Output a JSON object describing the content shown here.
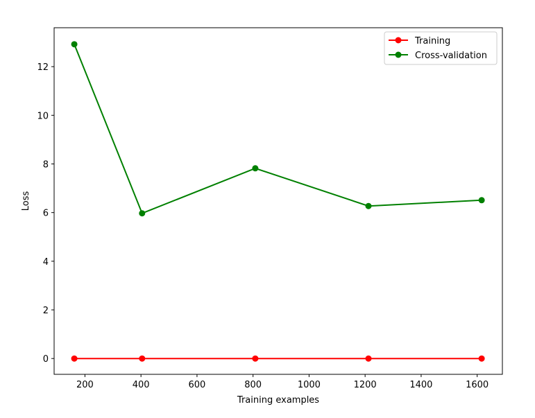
{
  "chart_data": {
    "type": "line",
    "xlabel": "Training examples",
    "ylabel": "Loss",
    "xlim": [
      90,
      1690
    ],
    "ylim": [
      -0.65,
      13.6
    ],
    "xticks": [
      200,
      400,
      600,
      800,
      1000,
      1200,
      1400,
      1600
    ],
    "yticks": [
      0,
      2,
      4,
      6,
      8,
      10,
      12
    ],
    "grid": false,
    "legend_position": "top-right",
    "series": [
      {
        "name": "Training",
        "color": "#ff0000",
        "marker": "circle",
        "x": [
          162,
          404,
          808,
          1212,
          1616
        ],
        "y": [
          0.0,
          0.0,
          0.0,
          0.0,
          0.0
        ]
      },
      {
        "name": "Cross-validation",
        "color": "#008000",
        "marker": "circle",
        "x": [
          162,
          404,
          808,
          1212,
          1616
        ],
        "y": [
          12.92,
          5.97,
          7.82,
          6.27,
          6.51
        ]
      }
    ]
  }
}
